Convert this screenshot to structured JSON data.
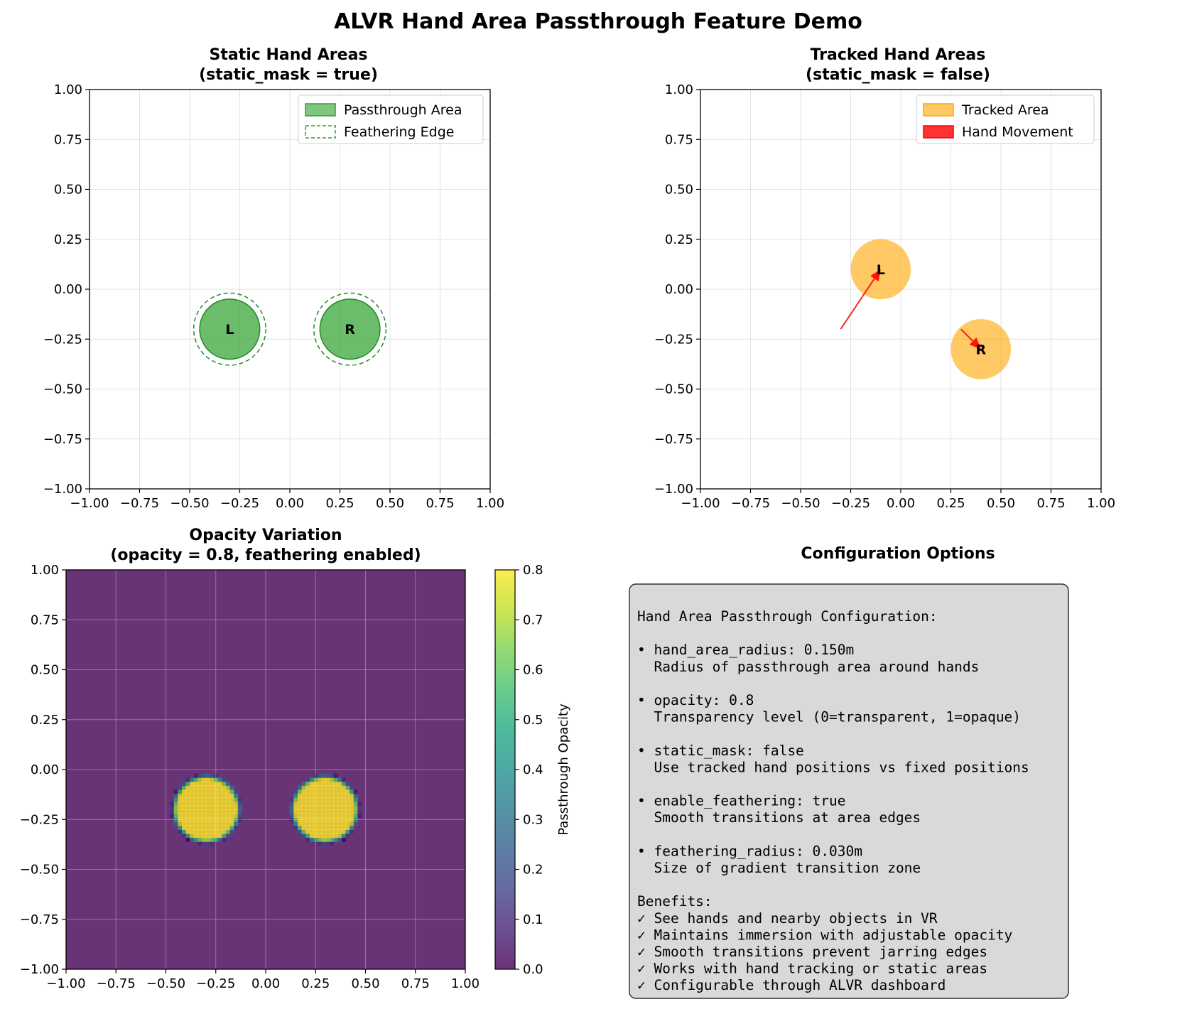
{
  "figure": {
    "title": "ALVR Hand Area Passthrough Feature Demo"
  },
  "chart_data": [
    {
      "id": "static",
      "type": "scatter",
      "title_lines": [
        "Static Hand Areas",
        "(static_mask = true)"
      ],
      "xlim": [
        -1,
        1
      ],
      "ylim": [
        -1,
        1
      ],
      "ticks": [
        -1.0,
        -0.75,
        -0.5,
        -0.25,
        0.0,
        0.25,
        0.5,
        0.75,
        1.0
      ],
      "tick_labels": [
        "−1.00",
        "−0.75",
        "−0.50",
        "−0.25",
        "0.00",
        "0.25",
        "0.50",
        "0.75",
        "1.00"
      ],
      "grid": true,
      "legend_position": "top-right",
      "legend": [
        {
          "label": "Passthrough Area",
          "style": "filled",
          "color": "#2ca02c"
        },
        {
          "label": "Feathering Edge",
          "style": "dashed",
          "color": "#2ca02c"
        }
      ],
      "hands": [
        {
          "label": "L",
          "x": -0.3,
          "y": -0.2,
          "radius": 0.15,
          "feather_radius": 0.18
        },
        {
          "label": "R",
          "x": 0.3,
          "y": -0.2,
          "radius": 0.15,
          "feather_radius": 0.18
        }
      ],
      "colors": {
        "fill": "#2ca02c",
        "edge": "#228b22"
      }
    },
    {
      "id": "tracked",
      "type": "scatter",
      "title_lines": [
        "Tracked Hand Areas",
        "(static_mask = false)"
      ],
      "xlim": [
        -1,
        1
      ],
      "ylim": [
        -1,
        1
      ],
      "ticks": [
        -1.0,
        -0.75,
        -0.5,
        -0.25,
        0.0,
        0.25,
        0.5,
        0.75,
        1.0
      ],
      "tick_labels": [
        "−1.00",
        "−0.75",
        "−0.50",
        "−0.25",
        "0.00",
        "0.25",
        "0.50",
        "0.75",
        "1.00"
      ],
      "grid": true,
      "legend_position": "top-right",
      "legend": [
        {
          "label": "Tracked Area",
          "style": "filled",
          "color": "#ffa500"
        },
        {
          "label": "Hand Movement",
          "style": "filled",
          "color": "#ff0000"
        }
      ],
      "hands": [
        {
          "label": "L",
          "x": -0.1,
          "y": 0.1,
          "radius": 0.15,
          "from": [
            -0.3,
            -0.2
          ]
        },
        {
          "label": "R",
          "x": 0.4,
          "y": -0.3,
          "radius": 0.15,
          "from": [
            0.3,
            -0.2
          ]
        }
      ],
      "colors": {
        "fill": "#ffa500",
        "arrow": "#ff0000"
      }
    },
    {
      "id": "opacity",
      "type": "heatmap",
      "title_lines": [
        "Opacity Variation",
        "(opacity = 0.8, feathering enabled)"
      ],
      "xlim": [
        -1,
        1
      ],
      "ylim": [
        -1,
        1
      ],
      "ticks": [
        -1.0,
        -0.75,
        -0.5,
        -0.25,
        0.0,
        0.25,
        0.5,
        0.75,
        1.0
      ],
      "tick_labels": [
        "−1.00",
        "−0.75",
        "−0.50",
        "−0.25",
        "0.00",
        "0.25",
        "0.50",
        "0.75",
        "1.00"
      ],
      "grid": true,
      "opacity": 0.8,
      "hand_radius": 0.15,
      "feathering_radius": 0.03,
      "centers": [
        [
          -0.3,
          -0.2
        ],
        [
          0.3,
          -0.2
        ]
      ],
      "grid_resolution": 100,
      "colorbar": {
        "label": "Passthrough Opacity",
        "range": [
          0.0,
          0.8
        ],
        "ticks": [
          0.0,
          0.1,
          0.2,
          0.3,
          0.4,
          0.5,
          0.6,
          0.7,
          0.8
        ],
        "tick_labels": [
          "0.0",
          "0.1",
          "0.2",
          "0.3",
          "0.4",
          "0.5",
          "0.6",
          "0.7",
          "0.8"
        ]
      },
      "colormap": "viridis"
    }
  ],
  "config_panel": {
    "title": "Configuration Options",
    "lines": [
      "Hand Area Passthrough Configuration:",
      "",
      "• hand_area_radius: 0.150m",
      "  Radius of passthrough area around hands",
      "",
      "• opacity: 0.8",
      "  Transparency level (0=transparent, 1=opaque)",
      "",
      "• static_mask: false",
      "  Use tracked hand positions vs fixed positions",
      "",
      "• enable_feathering: true",
      "  Smooth transitions at area edges",
      "",
      "• feathering_radius: 0.030m",
      "  Size of gradient transition zone",
      "",
      "Benefits:",
      "✓ See hands and nearby objects in VR",
      "✓ Maintains immersion with adjustable opacity",
      "✓ Smooth transitions prevent jarring edges",
      "✓ Works with hand tracking or static areas",
      "✓ Configurable through ALVR dashboard"
    ],
    "colors": {
      "box_fill": "#d9d9d9",
      "box_edge": "#333333"
    }
  }
}
